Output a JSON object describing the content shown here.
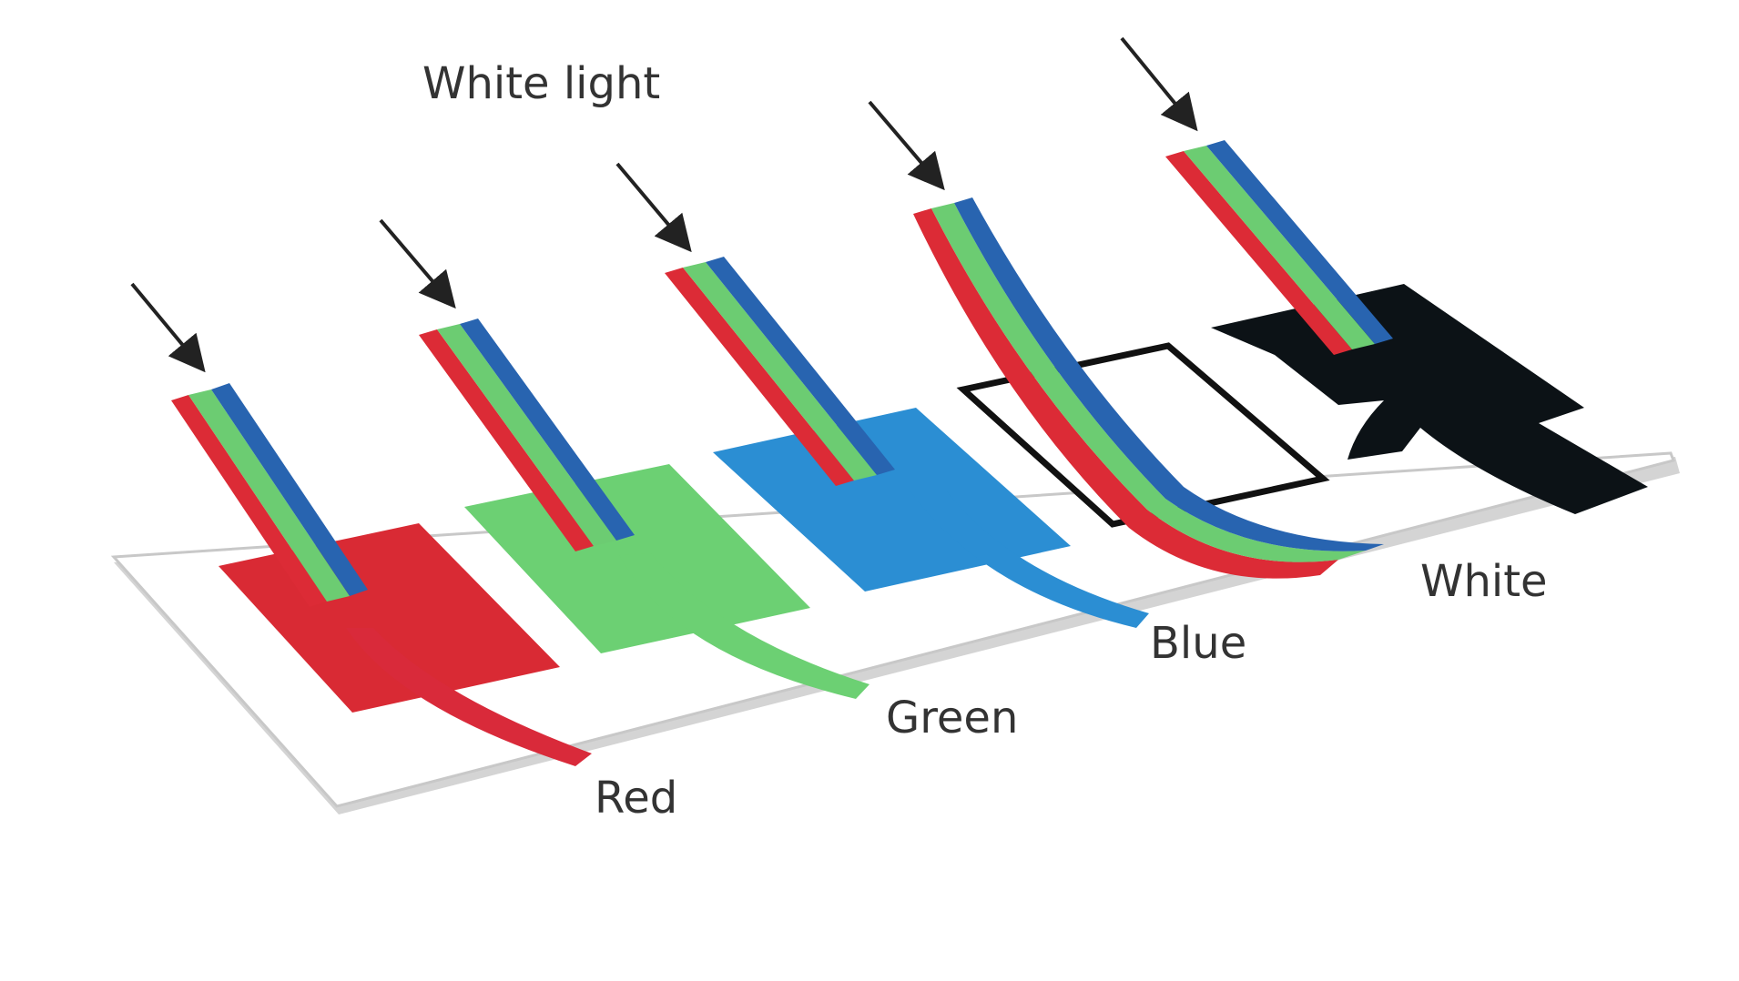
{
  "labels": {
    "incoming": "White light",
    "red": "Red",
    "green": "Green",
    "blue": "Blue",
    "white": "White"
  },
  "colors": {
    "beam_red": "#dc2b36",
    "beam_green": "#6ccc72",
    "beam_blue": "#2864b0",
    "patch_red": "#d92a34",
    "patch_green": "#6cd073",
    "patch_blue": "#2b8ed3",
    "patch_black": "#0c1216",
    "tray_edge": "#cccccc",
    "arrow": "#222222"
  }
}
